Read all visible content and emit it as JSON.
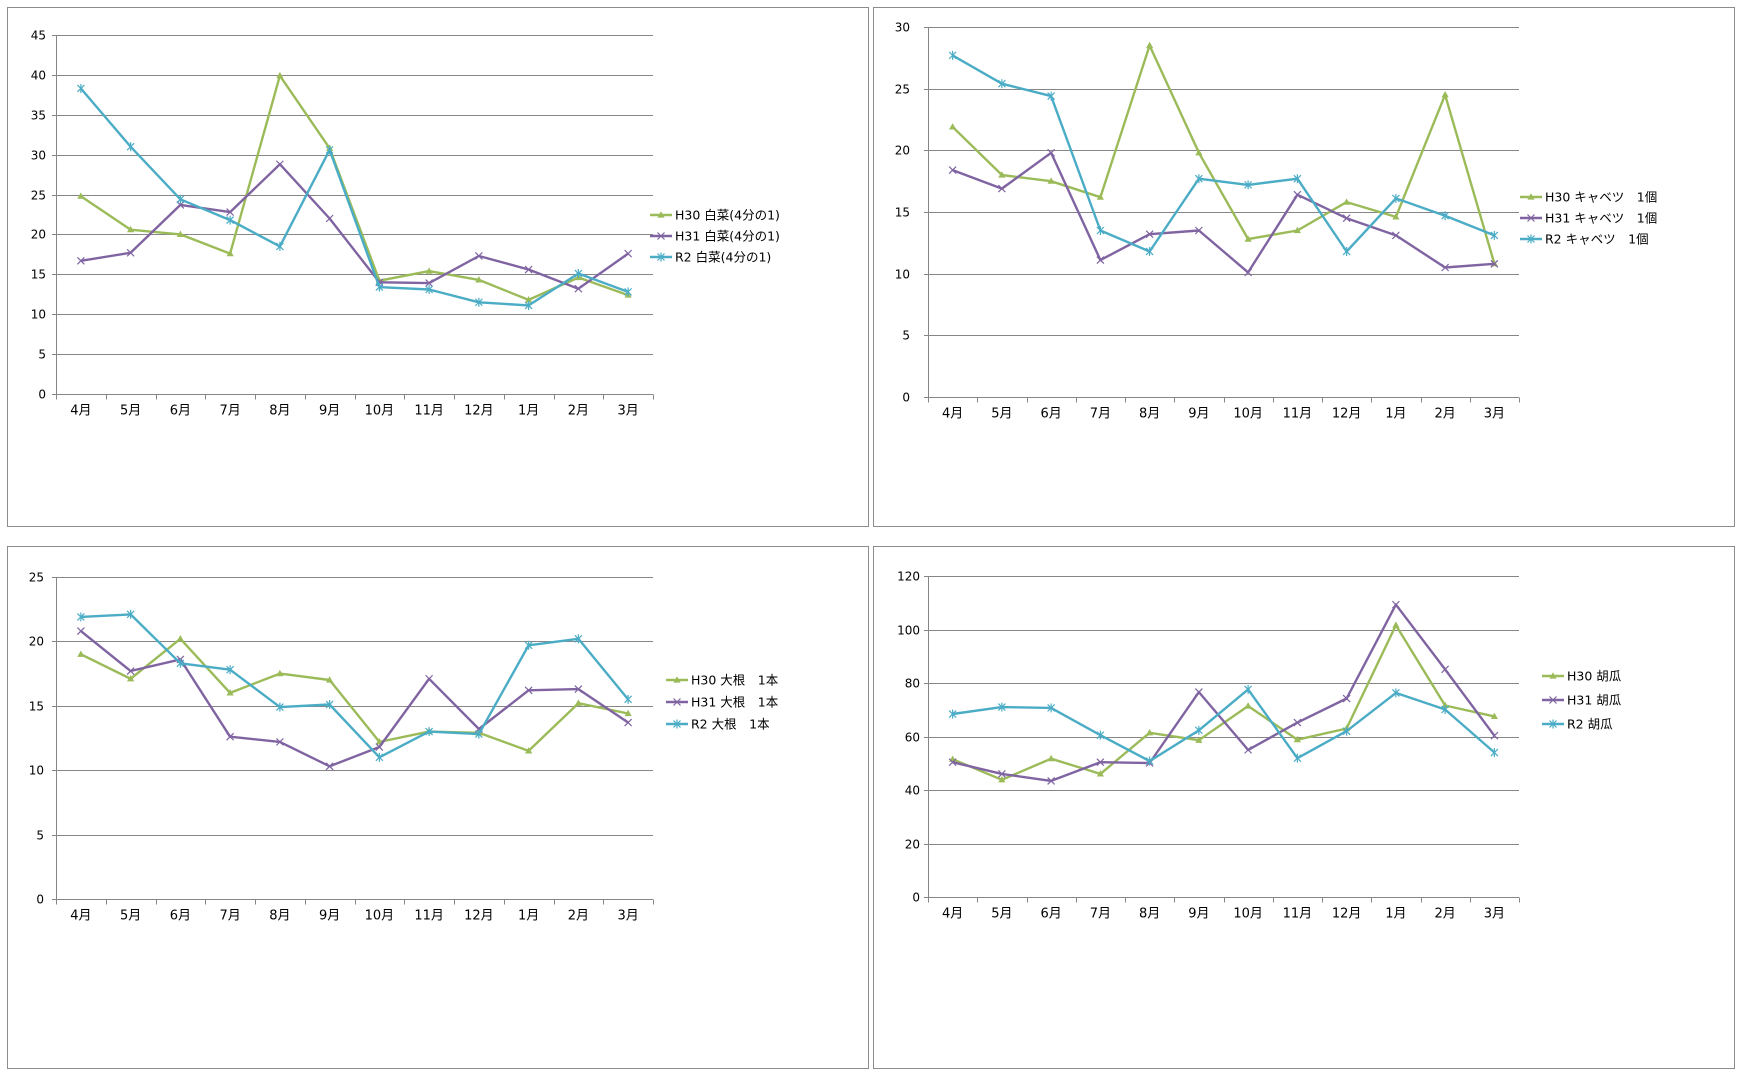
{
  "colors": {
    "h30": "#9bbb59",
    "h31": "#8064a2",
    "r2": "#4bacc6"
  },
  "chart_data": [
    {
      "type": "line",
      "categories": [
        "4月",
        "5月",
        "6月",
        "7月",
        "8月",
        "9月",
        "10月",
        "11月",
        "12月",
        "1月",
        "2月",
        "3月"
      ],
      "ylim": [
        0,
        45
      ],
      "yticks": [
        0,
        5,
        10,
        15,
        20,
        25,
        30,
        35,
        40,
        45
      ],
      "yticklabels": [
        "0",
        "5",
        "10",
        "15",
        "20",
        "25",
        "30",
        "35",
        "40",
        "45"
      ],
      "legend_position": "right",
      "series": [
        {
          "name": "H30 白菜(4分の1)",
          "values": [
            24.8,
            20.6,
            20.0,
            17.6,
            39.9,
            30.8,
            14.2,
            15.4,
            14.3,
            11.8,
            14.6,
            12.4
          ]
        },
        {
          "name": "H31 白菜(4分の1)",
          "values": [
            16.7,
            17.7,
            23.7,
            22.8,
            28.8,
            22.0,
            14.0,
            13.9,
            17.3,
            15.6,
            13.2,
            17.6
          ]
        },
        {
          "name": "R2 白菜(4分の1)",
          "values": [
            38.3,
            31.0,
            24.4,
            21.8,
            18.5,
            30.6,
            13.4,
            13.1,
            11.5,
            11.1,
            15.1,
            12.8
          ]
        }
      ]
    },
    {
      "type": "line",
      "categories": [
        "4月",
        "5月",
        "6月",
        "7月",
        "8月",
        "9月",
        "10月",
        "11月",
        "12月",
        "1月",
        "2月",
        "3月"
      ],
      "ylim": [
        0,
        30
      ],
      "yticks": [
        0,
        5,
        10,
        15,
        20,
        25,
        30
      ],
      "yticklabels": [
        "0",
        "5",
        "10",
        "15",
        "20",
        "25",
        "30"
      ],
      "legend_position": "right",
      "series": [
        {
          "name": "H30 キャベツ　1個",
          "values": [
            21.9,
            18.0,
            17.5,
            16.2,
            28.5,
            19.8,
            12.8,
            13.5,
            15.8,
            14.6,
            24.5,
            10.8
          ]
        },
        {
          "name": "H31 キャベツ　1個",
          "values": [
            18.4,
            16.9,
            19.8,
            11.1,
            13.2,
            13.5,
            10.1,
            16.4,
            14.5,
            13.1,
            10.5,
            10.8
          ]
        },
        {
          "name": "R2 キャベツ　1個",
          "values": [
            27.7,
            25.4,
            24.4,
            13.5,
            11.8,
            17.7,
            17.2,
            17.7,
            11.8,
            16.1,
            14.7,
            13.1
          ]
        }
      ]
    },
    {
      "type": "line",
      "categories": [
        "4月",
        "5月",
        "6月",
        "7月",
        "8月",
        "9月",
        "10月",
        "11月",
        "12月",
        "1月",
        "2月",
        "3月"
      ],
      "ylim": [
        0,
        25
      ],
      "yticks": [
        0,
        5,
        10,
        15,
        20,
        25
      ],
      "yticklabels": [
        "0",
        "5",
        "10",
        "15",
        "20",
        "25"
      ],
      "legend_position": "right",
      "series": [
        {
          "name": "H30 大根　1本",
          "values": [
            19.0,
            17.1,
            20.2,
            16.0,
            17.5,
            17.0,
            12.2,
            13.0,
            12.9,
            11.5,
            15.2,
            14.4
          ]
        },
        {
          "name": "H31 大根　1本",
          "values": [
            20.8,
            17.7,
            18.6,
            12.6,
            12.2,
            10.3,
            11.8,
            17.1,
            13.2,
            16.2,
            16.3,
            13.7
          ]
        },
        {
          "name": "R2 大根　1本",
          "values": [
            21.9,
            22.1,
            18.3,
            17.8,
            14.9,
            15.1,
            11.0,
            13.0,
            12.8,
            19.7,
            20.2,
            15.5
          ]
        }
      ]
    },
    {
      "type": "line",
      "categories": [
        "4月",
        "5月",
        "6月",
        "7月",
        "8月",
        "9月",
        "10月",
        "11月",
        "12月",
        "1月",
        "2月",
        "3月"
      ],
      "ylim": [
        0,
        120
      ],
      "yticks": [
        0,
        20,
        40,
        60,
        80,
        100,
        120
      ],
      "yticklabels": [
        "0",
        "20",
        "40",
        "60",
        "80",
        "100",
        "120"
      ],
      "legend_position": "right",
      "series": [
        {
          "name": "H30 胡瓜",
          "values": [
            51.5,
            43.8,
            51.7,
            46.0,
            61.4,
            58.6,
            71.4,
            58.8,
            63.0,
            101.6,
            71.6,
            67.5
          ]
        },
        {
          "name": "H31 胡瓜",
          "values": [
            50.4,
            46.0,
            43.4,
            50.4,
            50.1,
            76.6,
            55.0,
            65.2,
            74.2,
            109.3,
            85.1,
            60.3
          ]
        },
        {
          "name": "R2 胡瓜",
          "values": [
            68.4,
            71.0,
            70.7,
            60.5,
            50.8,
            62.3,
            77.6,
            51.9,
            62.0,
            76.3,
            70.1,
            54.0
          ]
        }
      ]
    }
  ]
}
